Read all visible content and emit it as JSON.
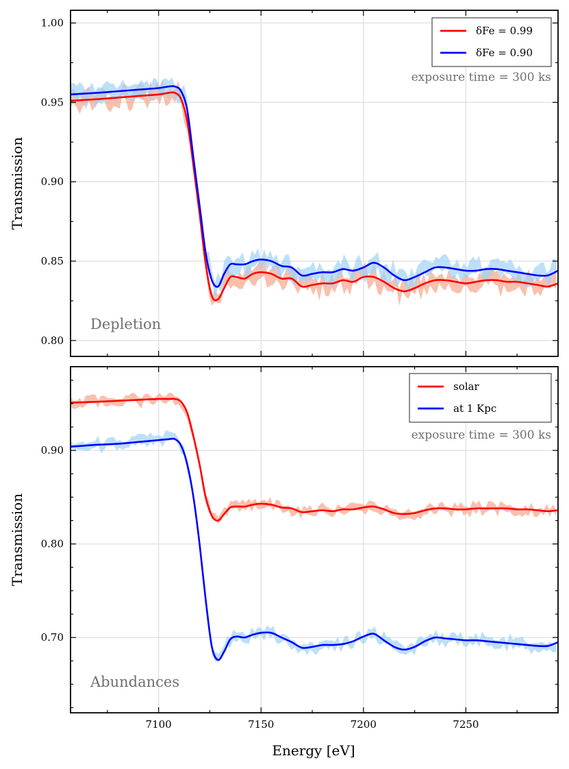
{
  "chart_data": [
    {
      "type": "line",
      "panel_label": "Depletion",
      "annotation": "exposure time = 300 ks",
      "ylabel": "Transmission",
      "xlim": [
        7057,
        7295
      ],
      "ylim": [
        0.79,
        1.008
      ],
      "yticks": [
        0.8,
        0.85,
        0.9,
        0.95,
        1.0
      ],
      "ytick_labels": [
        "0.80",
        "0.85",
        "0.90",
        "0.95",
        "1.00"
      ],
      "grid": true,
      "legend_position": "top-right",
      "x": [
        7057,
        7070,
        7080,
        7090,
        7100,
        7105,
        7108,
        7111,
        7114,
        7117,
        7120,
        7123,
        7126,
        7129,
        7132,
        7135,
        7138,
        7142,
        7146,
        7150,
        7155,
        7160,
        7165,
        7170,
        7175,
        7180,
        7185,
        7190,
        7195,
        7200,
        7205,
        7210,
        7215,
        7220,
        7225,
        7230,
        7235,
        7240,
        7245,
        7250,
        7255,
        7260,
        7265,
        7270,
        7275,
        7280,
        7285,
        7290,
        7295
      ],
      "series": [
        {
          "name": "δFe = 0.99",
          "color": "#ff0000",
          "band_color": "#f7a58c",
          "values": [
            0.951,
            0.952,
            0.953,
            0.954,
            0.955,
            0.956,
            0.956,
            0.952,
            0.938,
            0.91,
            0.88,
            0.848,
            0.828,
            0.826,
            0.833,
            0.84,
            0.84,
            0.839,
            0.842,
            0.843,
            0.842,
            0.839,
            0.839,
            0.834,
            0.835,
            0.836,
            0.836,
            0.838,
            0.837,
            0.84,
            0.84,
            0.837,
            0.833,
            0.831,
            0.833,
            0.836,
            0.838,
            0.838,
            0.837,
            0.836,
            0.837,
            0.838,
            0.838,
            0.837,
            0.837,
            0.836,
            0.835,
            0.834,
            0.836
          ],
          "noise": 0.0045
        },
        {
          "name": "δFe = 0.90",
          "color": "#0000ff",
          "band_color": "#9fd3f5",
          "values": [
            0.955,
            0.956,
            0.957,
            0.958,
            0.959,
            0.96,
            0.96,
            0.957,
            0.945,
            0.915,
            0.885,
            0.855,
            0.838,
            0.834,
            0.842,
            0.848,
            0.848,
            0.848,
            0.85,
            0.851,
            0.85,
            0.847,
            0.846,
            0.841,
            0.842,
            0.843,
            0.843,
            0.845,
            0.844,
            0.846,
            0.849,
            0.846,
            0.841,
            0.838,
            0.84,
            0.843,
            0.846,
            0.846,
            0.845,
            0.844,
            0.844,
            0.845,
            0.845,
            0.844,
            0.843,
            0.842,
            0.841,
            0.841,
            0.844
          ],
          "noise": 0.0045
        }
      ]
    },
    {
      "type": "line",
      "panel_label": "Abundances",
      "annotation": "exposure time = 300 ks",
      "ylabel": "Transmission",
      "xlabel": "Energy   [eV]",
      "xlim": [
        7057,
        7295
      ],
      "ylim": [
        0.6195,
        0.9895
      ],
      "xticks": [
        7100,
        7150,
        7200,
        7250
      ],
      "xtick_labels": [
        "7100",
        "7150",
        "7200",
        "7250"
      ],
      "yticks": [
        0.7,
        0.8,
        0.9
      ],
      "ytick_labels": [
        "0.70",
        "0.80",
        "0.90"
      ],
      "grid": true,
      "legend_position": "top-right",
      "x": [
        7057,
        7070,
        7080,
        7090,
        7100,
        7105,
        7108,
        7111,
        7114,
        7117,
        7120,
        7123,
        7126,
        7129,
        7132,
        7135,
        7138,
        7142,
        7146,
        7150,
        7155,
        7160,
        7165,
        7170,
        7175,
        7180,
        7185,
        7190,
        7195,
        7200,
        7205,
        7210,
        7215,
        7220,
        7225,
        7230,
        7235,
        7240,
        7245,
        7250,
        7255,
        7260,
        7265,
        7270,
        7275,
        7280,
        7285,
        7290,
        7295
      ],
      "series": [
        {
          "name": "solar",
          "color": "#ff0000",
          "band_color": "#f7a58c",
          "values": [
            0.951,
            0.952,
            0.953,
            0.954,
            0.955,
            0.955,
            0.955,
            0.952,
            0.94,
            0.915,
            0.885,
            0.85,
            0.83,
            0.825,
            0.832,
            0.839,
            0.84,
            0.84,
            0.842,
            0.843,
            0.842,
            0.839,
            0.838,
            0.834,
            0.835,
            0.836,
            0.835,
            0.837,
            0.837,
            0.839,
            0.84,
            0.837,
            0.833,
            0.832,
            0.833,
            0.836,
            0.838,
            0.838,
            0.837,
            0.837,
            0.838,
            0.838,
            0.838,
            0.838,
            0.837,
            0.837,
            0.836,
            0.835,
            0.836
          ],
          "noise": 0.004
        },
        {
          "name": "at 1 Kpc",
          "color": "#0000ff",
          "band_color": "#9fd3f5",
          "values": [
            0.904,
            0.906,
            0.907,
            0.909,
            0.911,
            0.912,
            0.912,
            0.905,
            0.885,
            0.85,
            0.8,
            0.74,
            0.69,
            0.676,
            0.685,
            0.698,
            0.701,
            0.7,
            0.703,
            0.705,
            0.705,
            0.7,
            0.695,
            0.689,
            0.69,
            0.692,
            0.692,
            0.693,
            0.696,
            0.701,
            0.704,
            0.697,
            0.69,
            0.687,
            0.69,
            0.696,
            0.7,
            0.699,
            0.698,
            0.697,
            0.697,
            0.696,
            0.695,
            0.694,
            0.693,
            0.692,
            0.691,
            0.691,
            0.695
          ],
          "noise": 0.0045
        }
      ]
    }
  ]
}
